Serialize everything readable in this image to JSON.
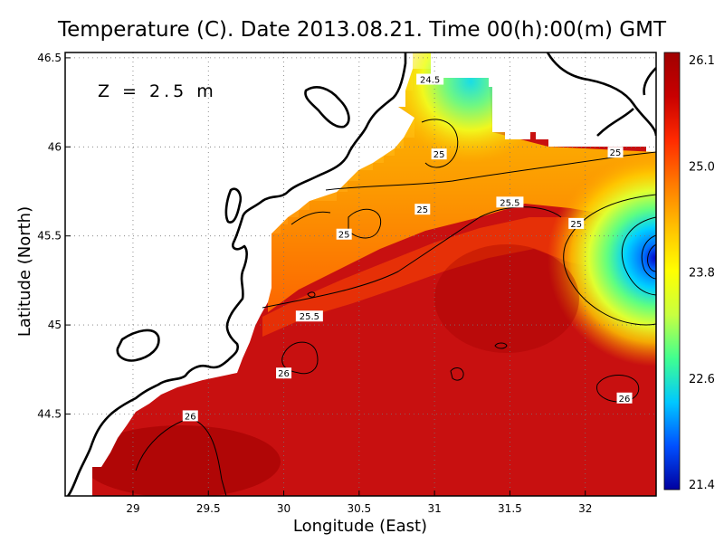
{
  "chart_data": {
    "type": "heatmap",
    "title": "Temperature (C). Date 2013.08.21. Time 00(h):00(m) GMT",
    "annotation": "Z = 2.5 m",
    "xlabel": "Longitude (East)",
    "ylabel": "Latitude (North)",
    "xlim": [
      28.55,
      32.47
    ],
    "ylim": [
      44.04,
      46.53
    ],
    "x_ticks": [
      "29",
      "29.5",
      "30",
      "30.5",
      "31",
      "31.5",
      "32"
    ],
    "y_ticks": [
      "44.5",
      "45",
      "45.5",
      "46",
      "46.5"
    ],
    "grid": true,
    "colorbar": {
      "ticks": [
        "26.1",
        "25.0",
        "23.8",
        "22.6",
        "21.4"
      ],
      "min": 21.4,
      "max": 26.1,
      "colors": [
        "#0000a0",
        "#0050ff",
        "#00c8ff",
        "#40ff90",
        "#c8ff40",
        "#ffff00",
        "#ffc000",
        "#ff7a00",
        "#ff2a00",
        "#c80000",
        "#a00000"
      ]
    },
    "contour_labels": [
      {
        "text": "24.5",
        "lon": 30.97,
        "lat": 46.38
      },
      {
        "text": "25",
        "lon": 31.03,
        "lat": 45.96
      },
      {
        "text": "25",
        "lon": 32.2,
        "lat": 45.97
      },
      {
        "text": "25.5",
        "lon": 31.5,
        "lat": 45.69
      },
      {
        "text": "25",
        "lon": 30.92,
        "lat": 45.65
      },
      {
        "text": "25",
        "lon": 30.4,
        "lat": 45.51
      },
      {
        "text": "25",
        "lon": 31.94,
        "lat": 45.57
      },
      {
        "text": "25.5",
        "lon": 30.17,
        "lat": 45.05
      },
      {
        "text": "26",
        "lon": 30.0,
        "lat": 44.73
      },
      {
        "text": "26",
        "lon": 32.26,
        "lat": 44.59
      },
      {
        "text": "26",
        "lon": 29.38,
        "lat": 44.49
      }
    ]
  }
}
